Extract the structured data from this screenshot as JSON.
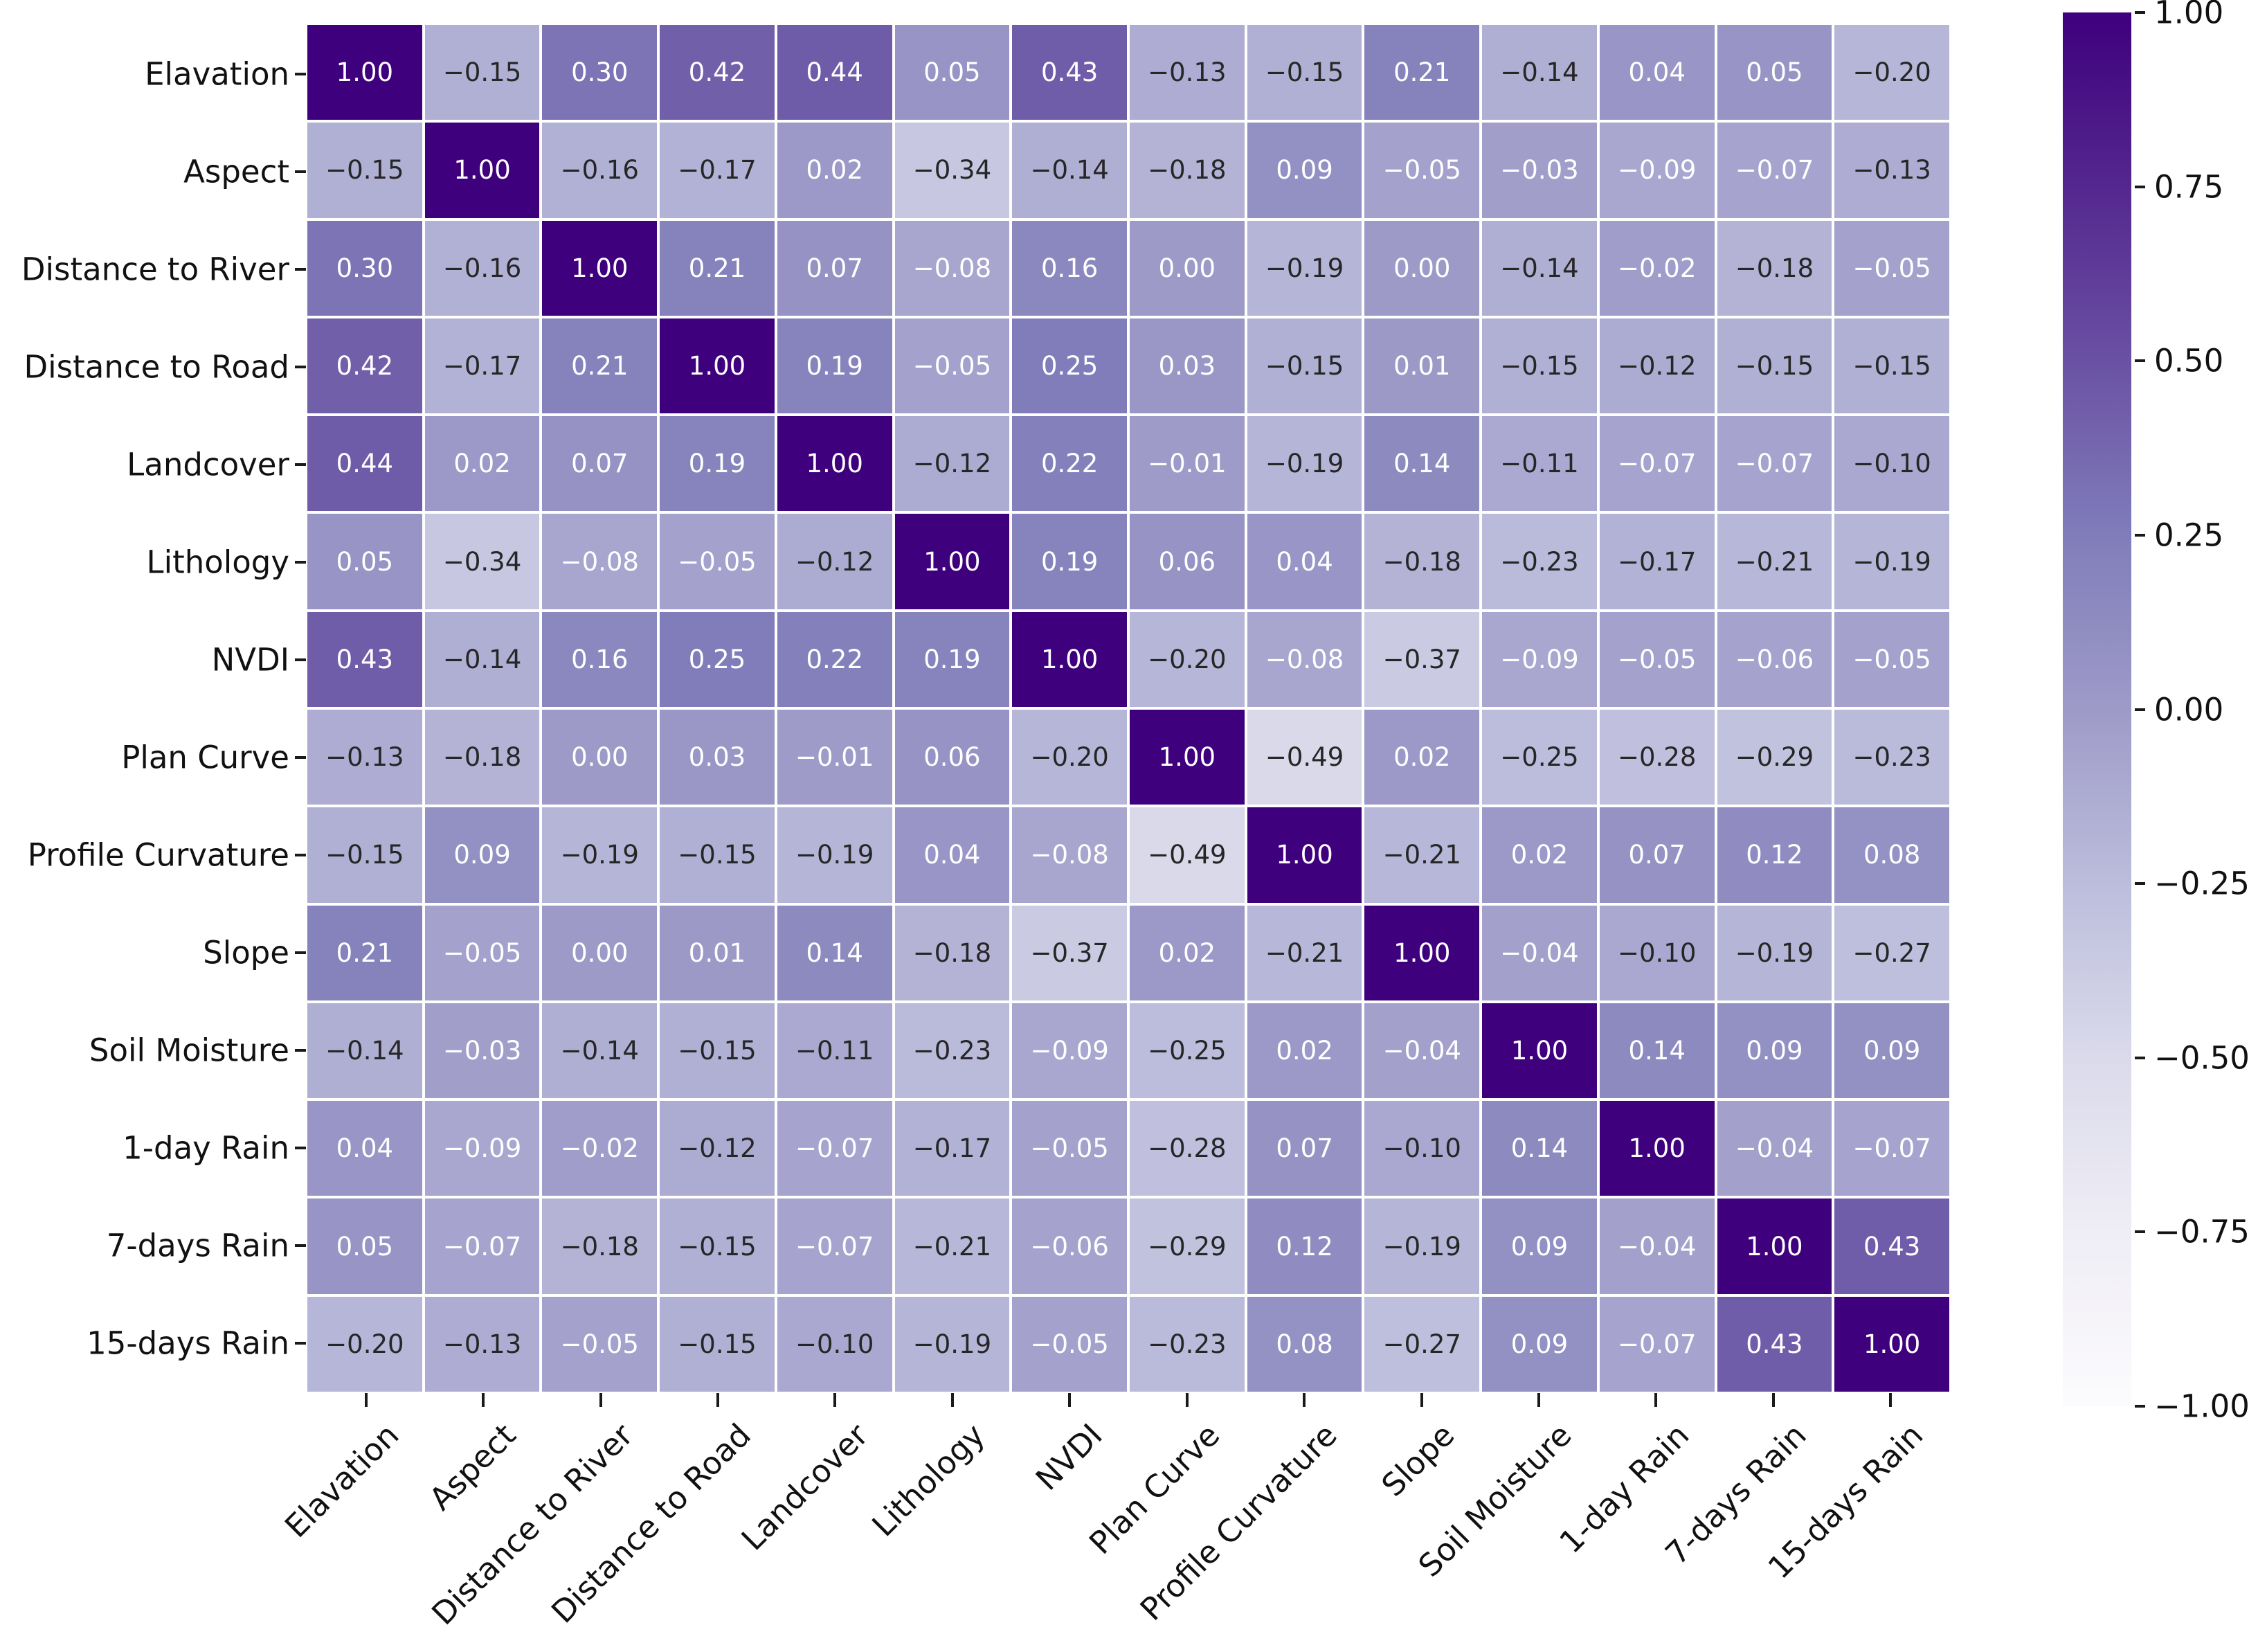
{
  "chart_data": {
    "type": "heatmap",
    "title": "",
    "xlabel": "",
    "ylabel": "",
    "categories": [
      "Elavation",
      "Aspect",
      "Distance to River",
      "Distance to Road",
      "Landcover",
      "Lithology",
      "NVDI",
      "Plan Curve",
      "Profile Curvature",
      "Slope",
      "Soil Moisture",
      "1-day Rain",
      "7-days Rain",
      "15-days Rain"
    ],
    "matrix": [
      [
        1.0,
        -0.15,
        0.3,
        0.42,
        0.44,
        0.05,
        0.43,
        -0.13,
        -0.15,
        0.21,
        -0.14,
        0.04,
        0.05,
        -0.2
      ],
      [
        -0.15,
        1.0,
        -0.16,
        -0.17,
        0.02,
        -0.34,
        -0.14,
        -0.18,
        0.09,
        -0.05,
        -0.03,
        -0.09,
        -0.07,
        -0.13
      ],
      [
        0.3,
        -0.16,
        1.0,
        0.21,
        0.07,
        -0.08,
        0.16,
        0.0,
        -0.19,
        0.0,
        -0.14,
        -0.02,
        -0.18,
        -0.05
      ],
      [
        0.42,
        -0.17,
        0.21,
        1.0,
        0.19,
        -0.05,
        0.25,
        0.03,
        -0.15,
        0.01,
        -0.15,
        -0.12,
        -0.15,
        -0.15
      ],
      [
        0.44,
        0.02,
        0.07,
        0.19,
        1.0,
        -0.12,
        0.22,
        -0.01,
        -0.19,
        0.14,
        -0.11,
        -0.07,
        -0.07,
        -0.1
      ],
      [
        0.05,
        -0.34,
        -0.08,
        -0.05,
        -0.12,
        1.0,
        0.19,
        0.06,
        0.04,
        -0.18,
        -0.23,
        -0.17,
        -0.21,
        -0.19
      ],
      [
        0.43,
        -0.14,
        0.16,
        0.25,
        0.22,
        0.19,
        1.0,
        -0.2,
        -0.08,
        -0.37,
        -0.09,
        -0.05,
        -0.06,
        -0.05
      ],
      [
        -0.13,
        -0.18,
        0.0,
        0.03,
        -0.01,
        0.06,
        -0.2,
        1.0,
        -0.49,
        0.02,
        -0.25,
        -0.28,
        -0.29,
        -0.23
      ],
      [
        -0.15,
        0.09,
        -0.19,
        -0.15,
        -0.19,
        0.04,
        -0.08,
        -0.49,
        1.0,
        -0.21,
        0.02,
        0.07,
        0.12,
        0.08
      ],
      [
        0.21,
        -0.05,
        0.0,
        0.01,
        0.14,
        -0.18,
        -0.37,
        0.02,
        -0.21,
        1.0,
        -0.04,
        -0.1,
        -0.19,
        -0.27
      ],
      [
        -0.14,
        -0.03,
        -0.14,
        -0.15,
        -0.11,
        -0.23,
        -0.09,
        -0.25,
        0.02,
        -0.04,
        1.0,
        0.14,
        0.09,
        0.09
      ],
      [
        0.04,
        -0.09,
        -0.02,
        -0.12,
        -0.07,
        -0.17,
        -0.05,
        -0.28,
        0.07,
        -0.1,
        0.14,
        1.0,
        -0.04,
        -0.07
      ],
      [
        0.05,
        -0.07,
        -0.18,
        -0.15,
        -0.07,
        -0.21,
        -0.06,
        -0.29,
        0.12,
        -0.19,
        0.09,
        -0.04,
        1.0,
        0.43
      ],
      [
        -0.2,
        -0.13,
        -0.05,
        -0.15,
        -0.1,
        -0.19,
        -0.05,
        -0.23,
        0.08,
        -0.27,
        0.09,
        -0.07,
        0.43,
        1.0
      ]
    ],
    "vmin": -1,
    "vmax": 1,
    "value_decimals": 2,
    "colormap": "Purples",
    "colormap_stops": [
      "#fcfbfd",
      "#efedf5",
      "#dadaeb",
      "#bcbddc",
      "#9e9ac8",
      "#807dba",
      "#6a51a3",
      "#54278f",
      "#3f007d"
    ],
    "annotation_text_dark": "#262626",
    "annotation_text_light": "#ffffff",
    "grid_line_color": "#ffffff",
    "legend_position": "right",
    "colorbar_ticks": [
      "1.00",
      "0.75",
      "0.50",
      "0.25",
      "0.00",
      "−0.25",
      "−0.50",
      "−0.75",
      "−1.00"
    ],
    "colorbar_tick_values": [
      1.0,
      0.75,
      0.5,
      0.25,
      0.0,
      -0.25,
      -0.5,
      -0.75,
      -1.0
    ]
  }
}
